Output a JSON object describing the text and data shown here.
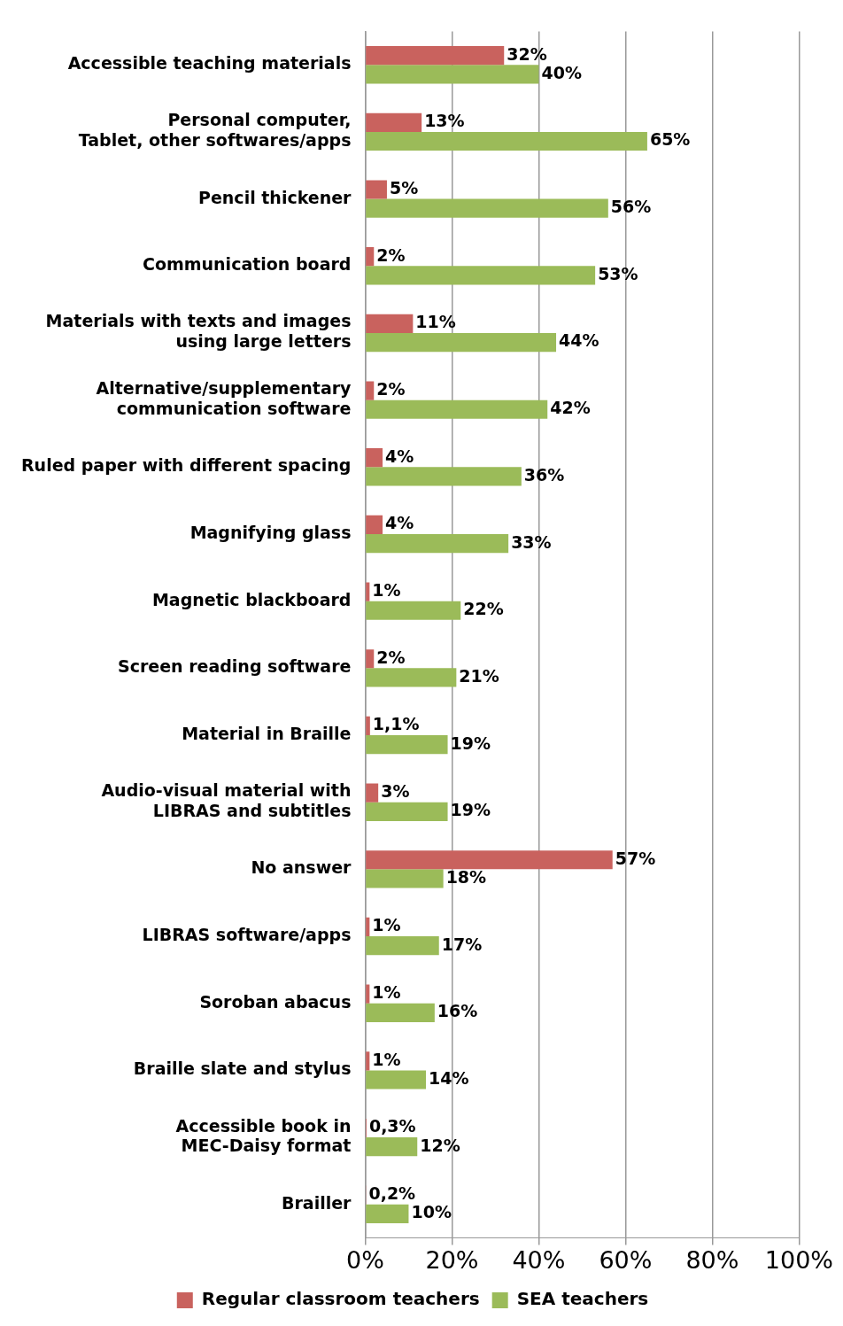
{
  "chart_data": {
    "type": "bar",
    "orientation": "horizontal",
    "categories": [
      "Accessible teaching materials",
      "Personal computer,\nTablet, other softwares/apps",
      "Pencil thickener",
      "Communication board",
      "Materials with texts and images\nusing large letters",
      "Alternative/supplementary\ncommunication software",
      "Ruled paper with different spacing",
      "Magnifying glass",
      "Magnetic blackboard",
      "Screen reading software",
      "Material in Braille",
      "Audio-visual material with\nLIBRAS and subtitles",
      "No answer",
      "LIBRAS software/apps",
      "Soroban abacus",
      "Braille slate and stylus",
      "Accessible book in\nMEC-Daisy format",
      "Brailler"
    ],
    "series": [
      {
        "name": "Regular classroom teachers",
        "color": "#c9625e",
        "values": [
          32,
          13,
          5,
          2,
          11,
          2,
          4,
          4,
          1,
          2,
          1.1,
          3,
          57,
          1,
          1,
          1,
          0.3,
          0.2
        ],
        "value_labels": [
          "32%",
          "13%",
          "5%",
          "2%",
          "11%",
          "2%",
          "4%",
          "4%",
          "1%",
          "2%",
          "1,1%",
          "3%",
          "57%",
          "1%",
          "1%",
          "1%",
          "0,3%",
          "0,2%"
        ]
      },
      {
        "name": "SEA teachers",
        "color": "#9bbb59",
        "values": [
          40,
          65,
          56,
          53,
          44,
          42,
          36,
          33,
          22,
          21,
          19,
          19,
          18,
          17,
          16,
          14,
          12,
          10
        ],
        "value_labels": [
          "40%",
          "65%",
          "56%",
          "53%",
          "44%",
          "42%",
          "36%",
          "33%",
          "22%",
          "21%",
          "19%",
          "19%",
          "18%",
          "17%",
          "16%",
          "14%",
          "12%",
          "10%"
        ]
      }
    ],
    "xlim": [
      0,
      100
    ],
    "xticks": [
      {
        "value": 0,
        "label": "0%"
      },
      {
        "value": 20,
        "label": "20%"
      },
      {
        "value": 40,
        "label": "40%"
      },
      {
        "value": 60,
        "label": "60%"
      },
      {
        "value": 80,
        "label": "80%"
      },
      {
        "value": 100,
        "label": "100%"
      }
    ],
    "grid": "x",
    "legend": "bottom"
  }
}
